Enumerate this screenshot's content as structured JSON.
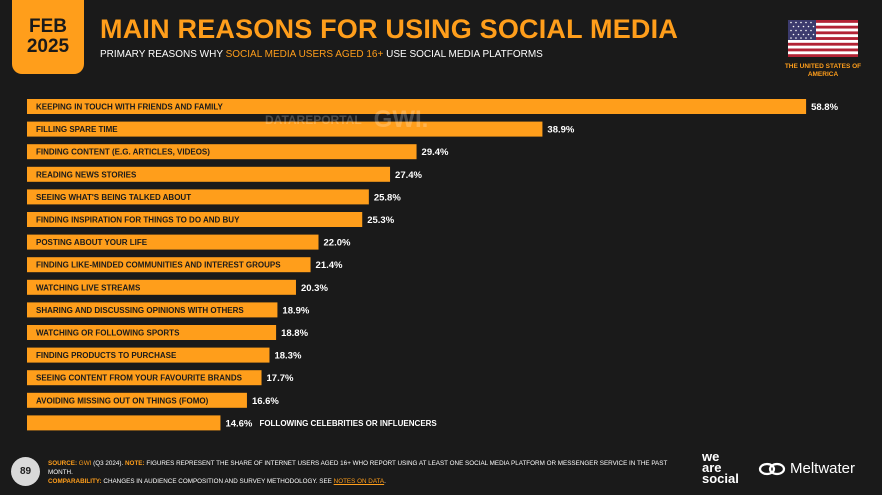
{
  "badge": {
    "month": "FEB",
    "year": "2025"
  },
  "header": {
    "title": "MAIN REASONS FOR USING SOCIAL MEDIA",
    "subtitle_pre": "PRIMARY REASONS WHY ",
    "subtitle_highlight": "SOCIAL MEDIA USERS AGED 16+",
    "subtitle_post": " USE SOCIAL MEDIA PLATFORMS"
  },
  "country": "THE UNITED STATES OF AMERICA",
  "watermark": {
    "left": "DATAREPORTAL",
    "right": "GWI."
  },
  "colors": {
    "accent": "#ff9e1b",
    "background": "#1a1a1a",
    "bar_label": "#1a1a1a",
    "value_label": "#ffffff"
  },
  "chart_data": {
    "type": "bar",
    "orientation": "horizontal",
    "categories": [
      "KEEPING IN TOUCH WITH FRIENDS AND FAMILY",
      "FILLING SPARE TIME",
      "FINDING CONTENT (E.G. ARTICLES, VIDEOS)",
      "READING NEWS STORIES",
      "SEEING WHAT'S BEING TALKED ABOUT",
      "FINDING INSPIRATION FOR THINGS TO DO AND BUY",
      "POSTING ABOUT YOUR LIFE",
      "FINDING LIKE-MINDED COMMUNITIES AND INTEREST GROUPS",
      "WATCHING LIVE STREAMS",
      "SHARING AND DISCUSSING OPINIONS WITH OTHERS",
      "WATCHING OR FOLLOWING SPORTS",
      "FINDING PRODUCTS TO PURCHASE",
      "SEEING CONTENT FROM YOUR FAVOURITE BRANDS",
      "AVOIDING MISSING OUT ON THINGS (FOMO)",
      "FOLLOWING CELEBRITIES OR INFLUENCERS"
    ],
    "values": [
      58.8,
      38.9,
      29.4,
      27.4,
      25.8,
      25.3,
      22.0,
      21.4,
      20.3,
      18.9,
      18.8,
      18.3,
      17.7,
      16.6,
      14.6
    ],
    "value_labels": [
      "58.8%",
      "38.9%",
      "29.4%",
      "27.4%",
      "25.8%",
      "25.3%",
      "22.0%",
      "21.4%",
      "20.3%",
      "18.9%",
      "18.8%",
      "18.3%",
      "17.7%",
      "16.6%",
      "14.6%"
    ],
    "xlim": [
      0,
      60
    ],
    "grid": false,
    "legend": "none",
    "color": "#ff9e1b"
  },
  "footer": {
    "source_label": "SOURCE:",
    "source_brand": "GWI",
    "source_text": " (Q3 2024). ",
    "note_label": "NOTE:",
    "note_text": " FIGURES REPRESENT THE SHARE OF INTERNET USERS AGED 16+ WHO REPORT USING AT LEAST ONE SOCIAL MEDIA PLATFORM OR MESSENGER SERVICE IN THE PAST MONTH.",
    "comparability_label": "COMPARABILITY:",
    "comparability_text": " CHANGES IN AUDIENCE COMPOSITION AND SURVEY METHODOLOGY. SEE ",
    "notes_link": "NOTES ON DATA",
    "end": "."
  },
  "page_number": "89",
  "brands": {
    "was_1": "we",
    "was_2": "are",
    "was_3": "social",
    "meltwater": "Meltwater"
  }
}
